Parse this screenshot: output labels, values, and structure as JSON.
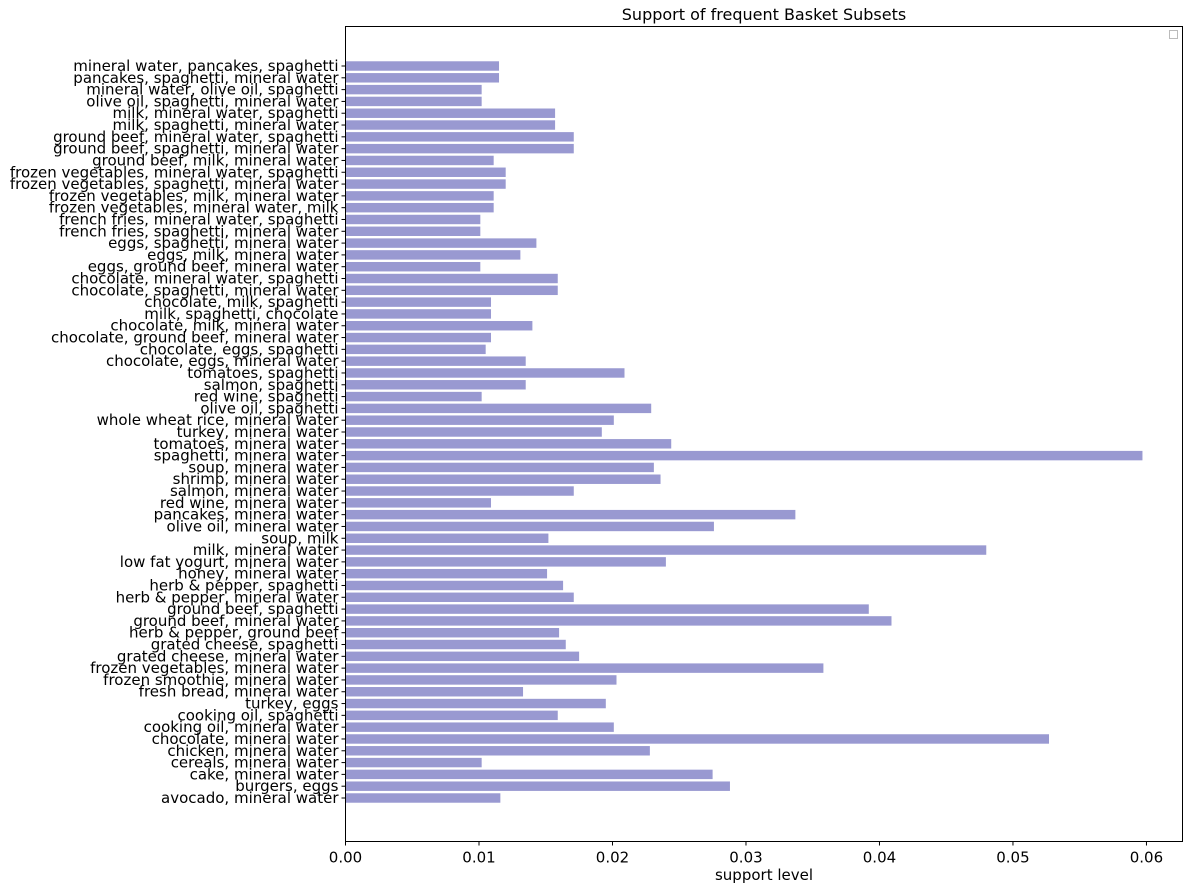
{
  "chart_data": {
    "type": "bar",
    "orientation": "horizontal",
    "title": "Support of frequent Basket Subsets",
    "xlabel": "support level",
    "ylabel": "",
    "xlim": [
      0.0,
      0.0627
    ],
    "xticks": [
      "0.00",
      "0.01",
      "0.02",
      "0.03",
      "0.04",
      "0.05",
      "0.06"
    ],
    "bar_color": "#9999d1",
    "grid": false,
    "legend": "empty box, top-right",
    "categories": [
      "avocado, mineral water",
      "burgers, eggs",
      "cake, mineral water",
      "cereals, mineral water",
      "chicken, mineral water",
      "chocolate, mineral water",
      "cooking oil, mineral water",
      "cooking oil, spaghetti",
      "turkey, eggs",
      "fresh bread, mineral water",
      "frozen smoothie, mineral water",
      "frozen vegetables, mineral water",
      "grated cheese, mineral water",
      "grated cheese, spaghetti",
      "herb & pepper, ground beef",
      "ground beef, mineral water",
      "ground beef, spaghetti",
      "herb & pepper, mineral water",
      "herb & pepper, spaghetti",
      "honey, mineral water",
      "low fat yogurt, mineral water",
      "milk, mineral water",
      "soup, milk",
      "olive oil, mineral water",
      "pancakes, mineral water",
      "red wine, mineral water",
      "salmon, mineral water",
      "shrimp, mineral water",
      "soup, mineral water",
      "spaghetti, mineral water",
      "tomatoes, mineral water",
      "turkey, mineral water",
      "whole wheat rice, mineral water",
      "olive oil, spaghetti",
      "red wine, spaghetti",
      "salmon, spaghetti",
      "tomatoes, spaghetti",
      "chocolate, eggs, mineral water",
      "chocolate, eggs, spaghetti",
      "chocolate, ground beef, mineral water",
      "chocolate, milk, mineral water",
      "milk, spaghetti, chocolate",
      "chocolate, milk, spaghetti",
      "chocolate, spaghetti, mineral water",
      "chocolate, mineral water, spaghetti",
      "eggs, ground beef, mineral water",
      "eggs, milk, mineral water",
      "eggs, spaghetti, mineral water",
      "french fries, spaghetti, mineral water",
      "french fries, mineral water, spaghetti",
      "frozen vegetables, mineral water, milk",
      "frozen vegetables, milk, mineral water",
      "frozen vegetables, spaghetti, mineral water",
      "frozen vegetables, mineral water, spaghetti",
      "ground beef, milk, mineral water",
      "ground beef, spaghetti, mineral water",
      "ground beef, mineral water, spaghetti",
      "milk, spaghetti, mineral water",
      "milk, mineral water, spaghetti",
      "olive oil, spaghetti, mineral water",
      "mineral water, olive oil, spaghetti",
      "pancakes, spaghetti, mineral water",
      "mineral water, pancakes, spaghetti"
    ],
    "values": [
      0.0116,
      0.0288,
      0.0275,
      0.0102,
      0.0228,
      0.0527,
      0.0201,
      0.0159,
      0.0195,
      0.0133,
      0.0203,
      0.0358,
      0.0175,
      0.0165,
      0.016,
      0.0409,
      0.0392,
      0.0171,
      0.0163,
      0.0151,
      0.024,
      0.048,
      0.0152,
      0.0276,
      0.0337,
      0.0109,
      0.0171,
      0.0236,
      0.0231,
      0.0597,
      0.0244,
      0.0192,
      0.0201,
      0.0229,
      0.0102,
      0.0135,
      0.0209,
      0.0135,
      0.0105,
      0.0109,
      0.014,
      0.0109,
      0.0109,
      0.0159,
      0.0159,
      0.0101,
      0.0131,
      0.0143,
      0.0101,
      0.0101,
      0.0111,
      0.0111,
      0.012,
      0.012,
      0.0111,
      0.0171,
      0.0171,
      0.0157,
      0.0157,
      0.0102,
      0.0102,
      0.0115,
      0.0115
    ]
  }
}
